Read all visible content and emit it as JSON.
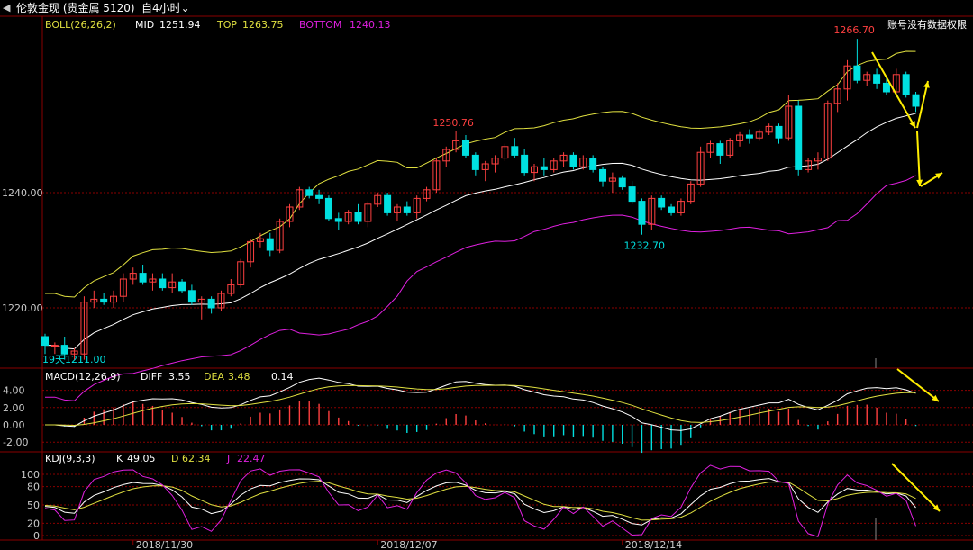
{
  "window": {
    "back_icon": "left-arrow-icon",
    "title": "伦敦金现 (贵金属 5120)",
    "period": "4小时",
    "period_prefix": "自",
    "notice": "账号没有数据权限"
  },
  "colors": {
    "up": "#ff4040",
    "down": "#00e0e0",
    "mid": "#ffffff",
    "top": "#e0e040",
    "bottom": "#e020e0",
    "grid": "#8a0000",
    "arrow": "#ffee00"
  },
  "boll": {
    "label": "BOLL(26,26,2)",
    "mid_label": "MID",
    "mid": "1251.94",
    "top_label": "TOP",
    "top": "1263.75",
    "bottom_label": "BOTTOM",
    "bottom": "1240.13"
  },
  "macd": {
    "label": "MACD(12,26,9)",
    "diff_label": "DIFF",
    "diff": "3.55",
    "dea_label": "DEA",
    "dea": "3.48",
    "macd": "0.14"
  },
  "kdj": {
    "label": "KDJ(9,3,3)",
    "k_label": "K",
    "k": "49.05",
    "d_label": "D",
    "d": "62.34",
    "j_label": "J",
    "j": "22.47"
  },
  "chart_data": {
    "type": "candlestick",
    "price_ticks": [
      "1240.00",
      "1220.00"
    ],
    "macd_ticks": [
      "4.00",
      "2.00",
      "0.00",
      "-2.00"
    ],
    "kdj_ticks": [
      "100",
      "80",
      "50",
      "20",
      "0"
    ],
    "x_ticks": [
      "2018/11/30",
      "2018/12/07",
      "2018/12/14"
    ],
    "annotations": [
      {
        "text": "1250.76",
        "kind": "high"
      },
      {
        "text": "1232.70",
        "kind": "low"
      },
      {
        "text": "1266.70",
        "kind": "high"
      },
      {
        "text": "19天1211.00",
        "kind": "low"
      }
    ],
    "candles": [
      [
        1215.0,
        1215.5,
        1212.0,
        1213.5
      ],
      [
        1213.5,
        1214.0,
        1212.0,
        1213.5
      ],
      [
        1213.5,
        1215.0,
        1211.0,
        1212.0
      ],
      [
        1212.0,
        1213.0,
        1211.0,
        1212.5
      ],
      [
        1212.0,
        1222.0,
        1211.0,
        1221.0
      ],
      [
        1221.0,
        1223.0,
        1220.0,
        1221.5
      ],
      [
        1221.5,
        1222.5,
        1220.5,
        1221.0
      ],
      [
        1221.0,
        1223.0,
        1220.0,
        1222.0
      ],
      [
        1222.0,
        1226.0,
        1221.0,
        1225.0
      ],
      [
        1225.0,
        1227.0,
        1224.0,
        1226.0
      ],
      [
        1226.0,
        1227.5,
        1224.0,
        1224.5
      ],
      [
        1224.5,
        1226.0,
        1223.0,
        1225.0
      ],
      [
        1225.0,
        1226.0,
        1223.0,
        1223.5
      ],
      [
        1223.5,
        1226.0,
        1222.5,
        1224.5
      ],
      [
        1224.5,
        1225.0,
        1222.5,
        1223.0
      ],
      [
        1223.0,
        1224.0,
        1220.5,
        1221.0
      ],
      [
        1221.0,
        1222.0,
        1218.0,
        1221.5
      ],
      [
        1221.5,
        1222.0,
        1219.0,
        1220.0
      ],
      [
        1220.0,
        1223.0,
        1219.5,
        1222.5
      ],
      [
        1222.5,
        1225.0,
        1222.0,
        1224.0
      ],
      [
        1224.0,
        1228.5,
        1223.5,
        1228.0
      ],
      [
        1228.0,
        1232.0,
        1227.0,
        1231.5
      ],
      [
        1231.5,
        1233.0,
        1230.5,
        1232.0
      ],
      [
        1232.0,
        1233.0,
        1229.0,
        1230.0
      ],
      [
        1230.0,
        1235.5,
        1229.5,
        1235.0
      ],
      [
        1235.0,
        1238.0,
        1234.0,
        1237.5
      ],
      [
        1237.5,
        1241.0,
        1237.0,
        1240.5
      ],
      [
        1240.5,
        1241.0,
        1239.0,
        1239.5
      ],
      [
        1239.5,
        1240.5,
        1238.0,
        1239.0
      ],
      [
        1239.0,
        1239.5,
        1235.0,
        1235.5
      ],
      [
        1235.5,
        1236.5,
        1233.5,
        1235.0
      ],
      [
        1235.0,
        1237.0,
        1234.5,
        1236.5
      ],
      [
        1236.5,
        1238.0,
        1234.5,
        1235.0
      ],
      [
        1235.0,
        1238.5,
        1234.0,
        1238.0
      ],
      [
        1238.0,
        1240.0,
        1237.5,
        1239.5
      ],
      [
        1239.5,
        1240.0,
        1236.0,
        1236.5
      ],
      [
        1236.5,
        1238.0,
        1235.0,
        1237.5
      ],
      [
        1237.5,
        1238.5,
        1236.0,
        1236.5
      ],
      [
        1236.5,
        1239.5,
        1235.5,
        1239.0
      ],
      [
        1239.0,
        1241.0,
        1238.5,
        1240.5
      ],
      [
        1240.5,
        1246.0,
        1240.0,
        1245.5
      ],
      [
        1245.5,
        1248.0,
        1244.5,
        1247.5
      ],
      [
        1247.5,
        1250.76,
        1247.0,
        1249.0
      ],
      [
        1249.0,
        1250.0,
        1246.0,
        1246.5
      ],
      [
        1246.5,
        1247.0,
        1243.0,
        1244.0
      ],
      [
        1244.0,
        1245.5,
        1242.0,
        1245.0
      ],
      [
        1245.0,
        1246.5,
        1243.5,
        1246.0
      ],
      [
        1246.0,
        1248.5,
        1245.5,
        1248.0
      ],
      [
        1248.0,
        1249.5,
        1246.0,
        1246.5
      ],
      [
        1246.5,
        1247.5,
        1243.0,
        1243.5
      ],
      [
        1243.5,
        1245.0,
        1242.0,
        1244.5
      ],
      [
        1244.5,
        1246.0,
        1243.0,
        1244.0
      ],
      [
        1244.0,
        1246.0,
        1243.5,
        1245.5
      ],
      [
        1245.5,
        1247.0,
        1244.5,
        1246.5
      ],
      [
        1246.5,
        1247.0,
        1244.0,
        1244.5
      ],
      [
        1244.5,
        1246.5,
        1244.0,
        1246.0
      ],
      [
        1246.0,
        1246.5,
        1243.5,
        1244.0
      ],
      [
        1244.0,
        1244.5,
        1241.0,
        1242.0
      ],
      [
        1242.0,
        1243.5,
        1240.0,
        1242.5
      ],
      [
        1242.5,
        1243.0,
        1240.5,
        1241.0
      ],
      [
        1241.0,
        1242.0,
        1238.0,
        1238.5
      ],
      [
        1238.5,
        1239.0,
        1232.7,
        1234.5
      ],
      [
        1234.5,
        1239.5,
        1233.5,
        1239.0
      ],
      [
        1239.0,
        1239.5,
        1237.0,
        1237.5
      ],
      [
        1237.5,
        1238.0,
        1236.0,
        1236.5
      ],
      [
        1236.5,
        1239.0,
        1236.0,
        1238.5
      ],
      [
        1238.5,
        1242.0,
        1238.0,
        1241.5
      ],
      [
        1241.5,
        1248.0,
        1241.0,
        1247.0
      ],
      [
        1247.0,
        1249.0,
        1246.0,
        1248.5
      ],
      [
        1248.5,
        1249.0,
        1245.0,
        1246.5
      ],
      [
        1246.5,
        1249.5,
        1246.0,
        1249.0
      ],
      [
        1249.0,
        1250.5,
        1248.0,
        1250.0
      ],
      [
        1250.0,
        1251.0,
        1248.5,
        1249.5
      ],
      [
        1249.5,
        1251.0,
        1249.0,
        1250.5
      ],
      [
        1250.5,
        1252.0,
        1250.0,
        1251.5
      ],
      [
        1251.5,
        1252.0,
        1248.5,
        1249.5
      ],
      [
        1249.5,
        1257.0,
        1249.0,
        1255.0
      ],
      [
        1255.0,
        1256.0,
        1243.0,
        1244.0
      ],
      [
        1244.0,
        1246.0,
        1243.5,
        1245.5
      ],
      [
        1245.5,
        1247.0,
        1244.0,
        1246.0
      ],
      [
        1246.0,
        1256.0,
        1245.5,
        1255.5
      ],
      [
        1255.5,
        1259.0,
        1254.0,
        1258.0
      ],
      [
        1258.0,
        1263.0,
        1256.0,
        1262.0
      ],
      [
        1262.0,
        1266.7,
        1259.0,
        1259.5
      ],
      [
        1259.5,
        1261.0,
        1258.5,
        1260.5
      ],
      [
        1260.5,
        1261.5,
        1258.0,
        1259.0
      ],
      [
        1259.0,
        1260.0,
        1257.0,
        1257.5
      ],
      [
        1257.5,
        1261.5,
        1257.0,
        1260.5
      ],
      [
        1260.5,
        1261.0,
        1256.5,
        1257.0
      ],
      [
        1257.0,
        1257.5,
        1254.0,
        1255.0
      ]
    ]
  }
}
